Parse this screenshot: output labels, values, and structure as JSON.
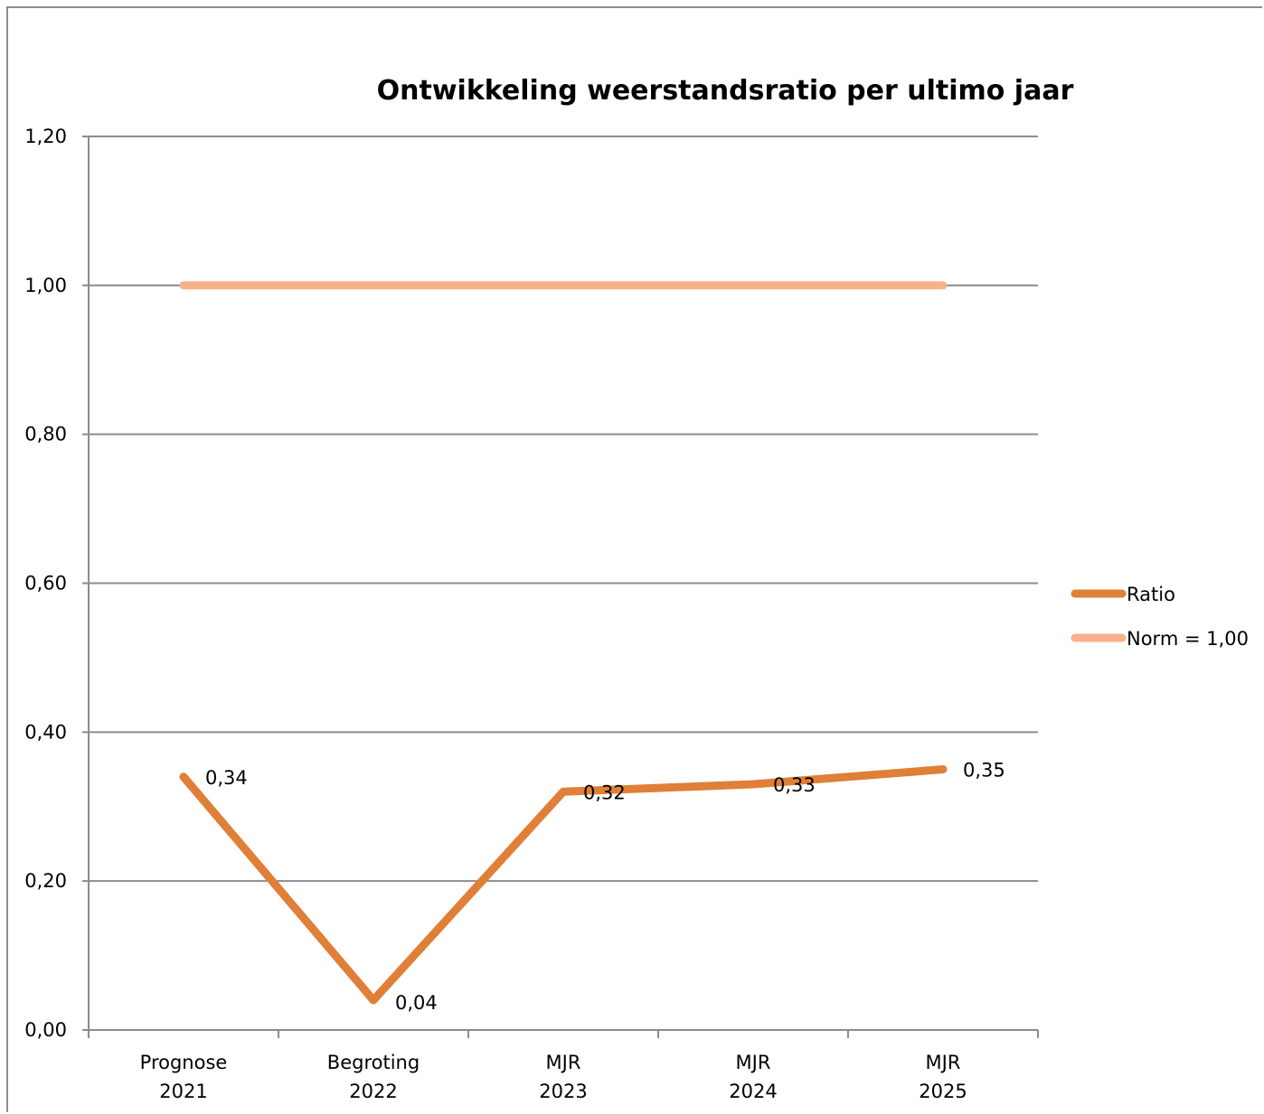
{
  "chart_data": {
    "type": "line",
    "title": "Ontwikkeling weerstandsratio per ultimo jaar",
    "categories": [
      [
        "Prognose",
        "2021"
      ],
      [
        "Begroting",
        "2022"
      ],
      [
        "MJR",
        "2023"
      ],
      [
        "MJR",
        "2024"
      ],
      [
        "MJR",
        "2025"
      ]
    ],
    "series": [
      {
        "name": "Ratio",
        "values": [
          0.34,
          0.04,
          0.32,
          0.33,
          0.35
        ],
        "labels": [
          "0,34",
          "0,04",
          "0,32",
          "0,33",
          "0,35"
        ],
        "color": "#e07f38"
      },
      {
        "name": "Norm = 1,00",
        "values": [
          1.0,
          1.0,
          1.0,
          1.0,
          1.0
        ],
        "color": "#f7b08a"
      }
    ],
    "ylim": [
      0,
      1.2
    ],
    "yticks": [
      0,
      0.2,
      0.4,
      0.6,
      0.8,
      1.0,
      1.2
    ],
    "ytick_labels": [
      "0,00",
      "0,20",
      "0,40",
      "0,60",
      "0,80",
      "1,00",
      "1,20"
    ],
    "grid": true,
    "legend_position": "right",
    "gridline_color": "#8c8c8c"
  }
}
